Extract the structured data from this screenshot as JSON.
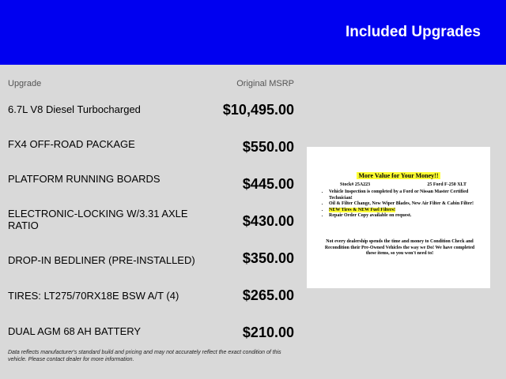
{
  "header": {
    "title": "Included Upgrades",
    "color": "#0000f0"
  },
  "columns": {
    "upgrade": "Upgrade",
    "msrp": "Original MSRP"
  },
  "upgrades": [
    {
      "name": "6.7L V8 Diesel Turbocharged",
      "price": "$10,495.00"
    },
    {
      "name": "FX4 OFF-ROAD PACKAGE",
      "price": "$550.00"
    },
    {
      "name": "PLATFORM RUNNING BOARDS",
      "price": "$445.00"
    },
    {
      "name": "ELECTRONIC-LOCKING W/3.31 AXLE RATIO",
      "price": "$430.00"
    },
    {
      "name": "DROP-IN BEDLINER (PRE-INSTALLED)",
      "price": "$350.00"
    },
    {
      "name": "TIRES: LT275/70RX18E BSW A/T (4)",
      "price": "$265.00"
    },
    {
      "name": "DUAL AGM 68 AH BATTERY",
      "price": "$210.00"
    }
  ],
  "disclaimer": "Data reflects manufacturer's standard build and pricing and may not accurately reflect the exact condition of this vehicle. Please contact dealer for more information.",
  "document": {
    "title": "More Value for Your Money!!",
    "stock": "Stock#  25A223",
    "vehicle": "25 Ford F-250 XLT",
    "bullets": [
      "Vehicle Inspection is completed by a Ford or Nissan Master Certified Technician!",
      "Oil & Filter Change, New Wiper Blades, New Air Filter & Cabin Filter!",
      "NEW Tires & NEW Fuel Filters!",
      "Repair Order Copy available on request."
    ],
    "footer": "Not every dealership spends the time and money to Condition Check and Recondition their Pre-Owned Vehicles the way we Do! We have completed these items, so you won't need to!"
  }
}
